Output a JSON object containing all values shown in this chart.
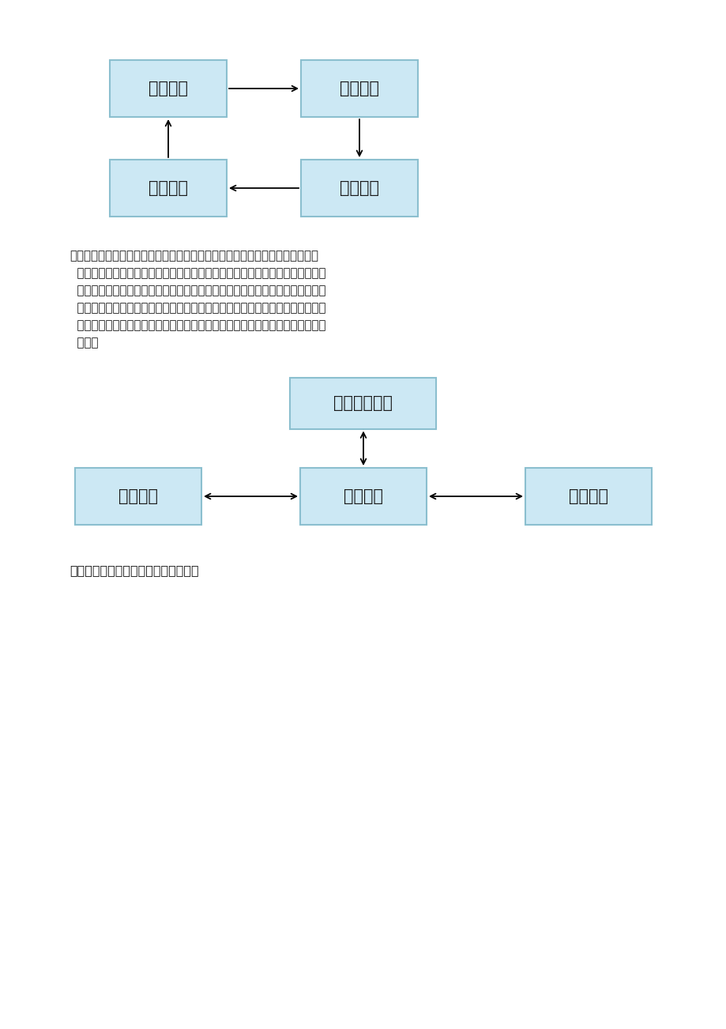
{
  "bg_color": "#ffffff",
  "box_fill": "#cce8f4",
  "box_edge": "#8bbfcf",
  "text_color": "#1a1a1a",
  "paragraph_lines": [
    "混合模式是结合上面两种模式的特点的一种折中模式。该模式所有的爬虫都可以",
    "  相互通信同时都具有任务分配功能。不过所有爬虫中有个特殊的爬虫，该爬虫主",
    "  要功能对已经经过爬虫任务分配后无法分配的任务进行集中分配。使用这个方式",
    "  的每个网络爬虫只需维护自己采集范围的地址列表。而特殊爬虫需除了保存自己",
    "  采集范围的地址列表外还保存需要进行集中分配的地址列表。混合模式的整体结",
    "  构图："
  ],
  "section_label": "三、大型分布式网络爬虫体系结构图："
}
